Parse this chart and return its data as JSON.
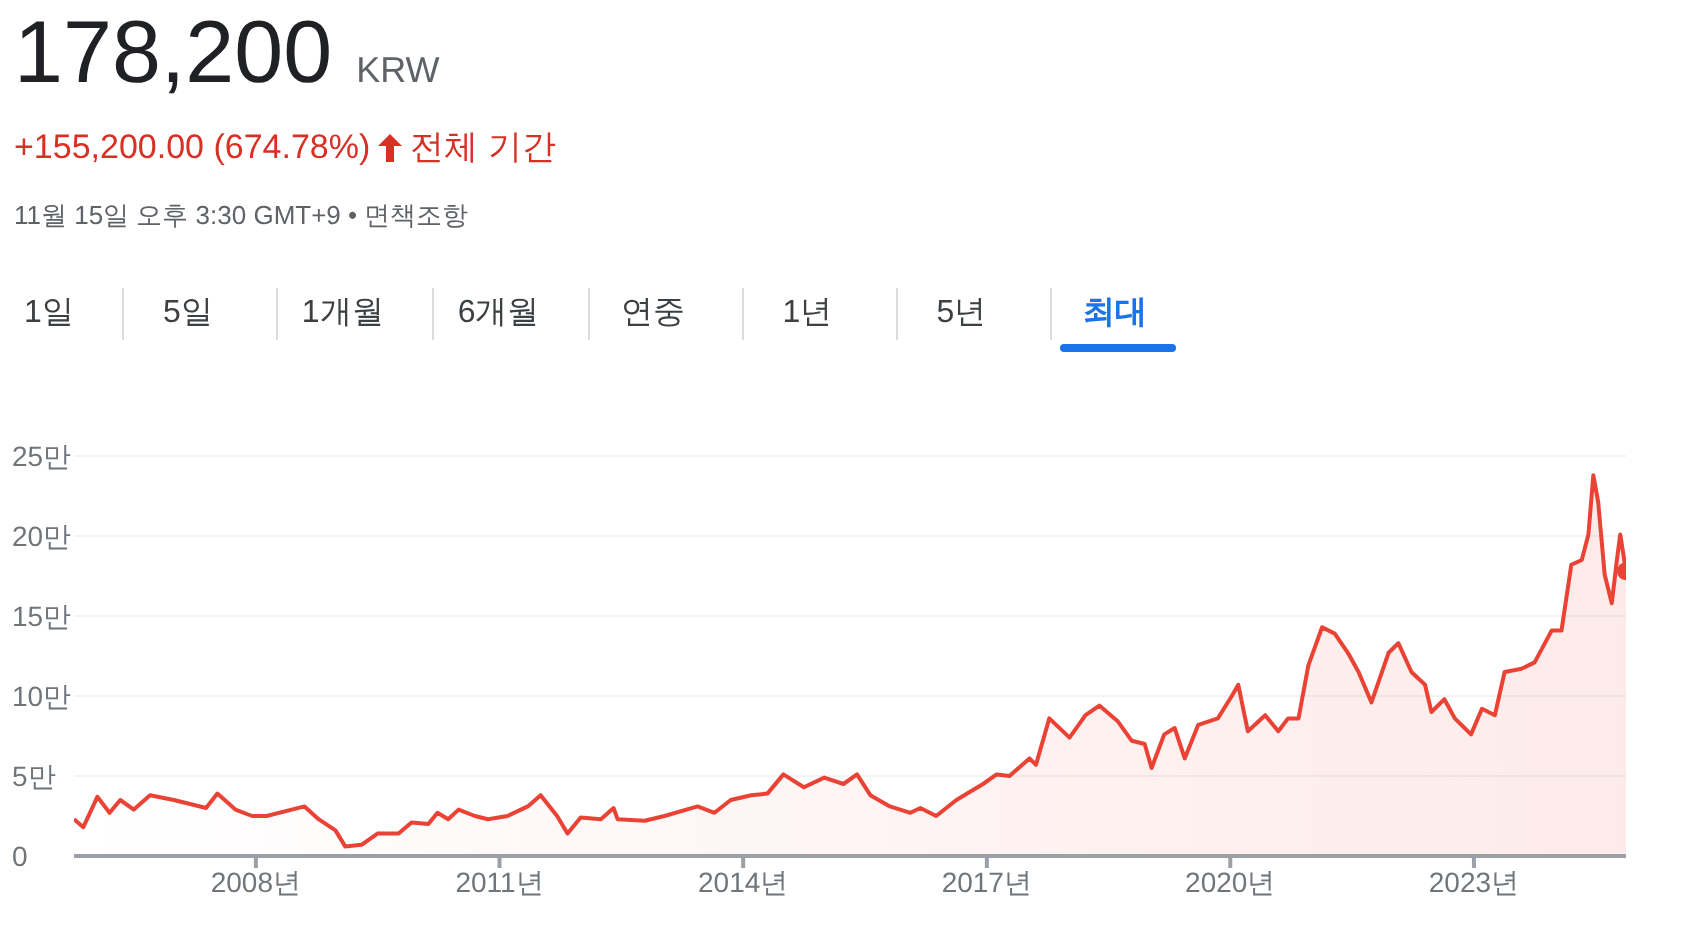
{
  "chart_data": {
    "type": "area",
    "title": "178,200",
    "annotations": [
      "KRW",
      "+155,200.00 (674.78%)",
      "전체 기간",
      "11월 15일 오후 3:30 GMT+9 • 면책조항",
      "1일",
      "5일",
      "1개월",
      "6개월",
      "연중",
      "1년",
      "5년",
      "최대"
    ],
    "series": [
      {
        "color": "#ea4335",
        "x": [
          "2005-10-05",
          "2005-11-16",
          "2006-01-18",
          "2006-03-14",
          "2006-05-01",
          "2006-07-01",
          "2006-09-12",
          "2006-12-28",
          "2007-03-25",
          "2007-05-22",
          "2007-07-12",
          "2007-10-01",
          "2007-12-15",
          "2008-02-18",
          "2008-08-07",
          "2008-10-09",
          "2008-12-24",
          "2009-02-06",
          "2009-04-20",
          "2009-07-01",
          "2009-10-04",
          "2009-12-01",
          "2010-02-15",
          "2010-03-28",
          "2010-05-15",
          "2010-07-01",
          "2010-09-12",
          "2010-11-10",
          "2011-02-06",
          "2011-05-08",
          "2011-07-05",
          "2011-09-17",
          "2011-11-03",
          "2012-01-01",
          "2012-04-01",
          "2012-05-28",
          "2012-06-15",
          "2012-10-15",
          "2013-01-12",
          "2013-06-10",
          "2013-08-25",
          "2013-11-06",
          "2014-02-06",
          "2014-04-20",
          "2014-07-01",
          "2014-10-01",
          "2015-01-01",
          "2015-03-28",
          "2015-05-28",
          "2015-07-27",
          "2015-10-23",
          "2016-01-23",
          "2016-03-08",
          "2016-05-18",
          "2016-08-17",
          "2016-12-15",
          "2017-02-14",
          "2017-04-13",
          "2017-07-12",
          "2017-08-10",
          "2017-10-09",
          "2018-01-08",
          "2018-03-21",
          "2018-05-22",
          "2018-08-14",
          "2018-10-15",
          "2018-12-12",
          "2019-01-12",
          "2019-03-10",
          "2019-04-26",
          "2019-06-10",
          "2019-08-10",
          "2019-11-06",
          "2020-01-08",
          "2020-02-06",
          "2020-03-20",
          "2020-06-06",
          "2020-08-04",
          "2020-09-17",
          "2020-11-03",
          "2020-12-17",
          "2021-02-17",
          "2021-04-15",
          "2021-06-13",
          "2021-07-31",
          "2021-09-27",
          "2021-12-13",
          "2022-01-26",
          "2022-03-26",
          "2022-05-26",
          "2022-06-24",
          "2022-08-21",
          "2022-10-07",
          "2022-12-19",
          "2023-02-06",
          "2023-04-05",
          "2023-05-19",
          "2023-08-03",
          "2023-10-01",
          "2023-12-17",
          "2024-01-30",
          "2024-03-14",
          "2024-04-30",
          "2024-05-30",
          "2024-06-21",
          "2024-07-13",
          "2024-08-11",
          "2024-09-12",
          "2024-10-05",
          "2024-10-20",
          "2024-11-15"
        ],
        "values": [
          2.3,
          1.8,
          3.7,
          2.7,
          3.5,
          2.9,
          3.8,
          3.5,
          3.2,
          3,
          3.9,
          2.9,
          2.5,
          2.5,
          3.1,
          2.3,
          1.6,
          0.6,
          0.7,
          1.4,
          1.4,
          2.1,
          2,
          2.7,
          2.3,
          2.9,
          2.5,
          2.3,
          2.5,
          3.1,
          3.8,
          2.5,
          1.4,
          2.4,
          2.3,
          3,
          2.3,
          2.2,
          2.5,
          3.1,
          2.7,
          3.5,
          3.8,
          3.9,
          5.1,
          4.3,
          4.9,
          4.5,
          5.1,
          3.8,
          3.1,
          2.7,
          3,
          2.5,
          3.5,
          4.5,
          5.1,
          5,
          6.1,
          5.7,
          8.6,
          7.4,
          8.8,
          9.4,
          8.4,
          7.2,
          7,
          5.5,
          7.6,
          8,
          6.1,
          8.2,
          8.6,
          10,
          10.7,
          7.8,
          8.8,
          7.8,
          8.6,
          8.6,
          11.9,
          14.3,
          13.9,
          12.7,
          11.5,
          9.6,
          12.7,
          13.3,
          11.5,
          10.7,
          9,
          9.8,
          8.6,
          7.6,
          9.2,
          8.8,
          11.5,
          11.7,
          12.1,
          14.1,
          14.1,
          18.2,
          18.5,
          20.1,
          23.8,
          22.1,
          17.6,
          15.8,
          18.5,
          20.1,
          17.8
        ]
      },
      {
        "type": "scatter",
        "color": "#ea4335",
        "marker": "circle",
        "x": [
          "2024-11-15"
        ],
        "values": [
          17.8
        ]
      }
    ],
    "xlim": [
      "2005-10-05",
      "2024-11-15"
    ],
    "xticks": [
      {
        "value": "2008-01-01",
        "label": "2008년"
      },
      {
        "value": "2011-01-01",
        "label": "2011년"
      },
      {
        "value": "2014-01-01",
        "label": "2014년"
      },
      {
        "value": "2017-01-01",
        "label": "2017년"
      },
      {
        "value": "2020-01-01",
        "label": "2020년"
      },
      {
        "value": "2023-01-01",
        "label": "2023년"
      }
    ],
    "ylim": [
      0,
      25
    ],
    "yticks": [
      0,
      {
        "value": 5,
        "label": "5만"
      },
      {
        "value": 10,
        "label": "10만"
      },
      {
        "value": 15,
        "label": "15만"
      },
      {
        "value": 20,
        "label": "20만"
      },
      {
        "value": 25,
        "label": "25만"
      }
    ],
    "grid": "y"
  }
}
